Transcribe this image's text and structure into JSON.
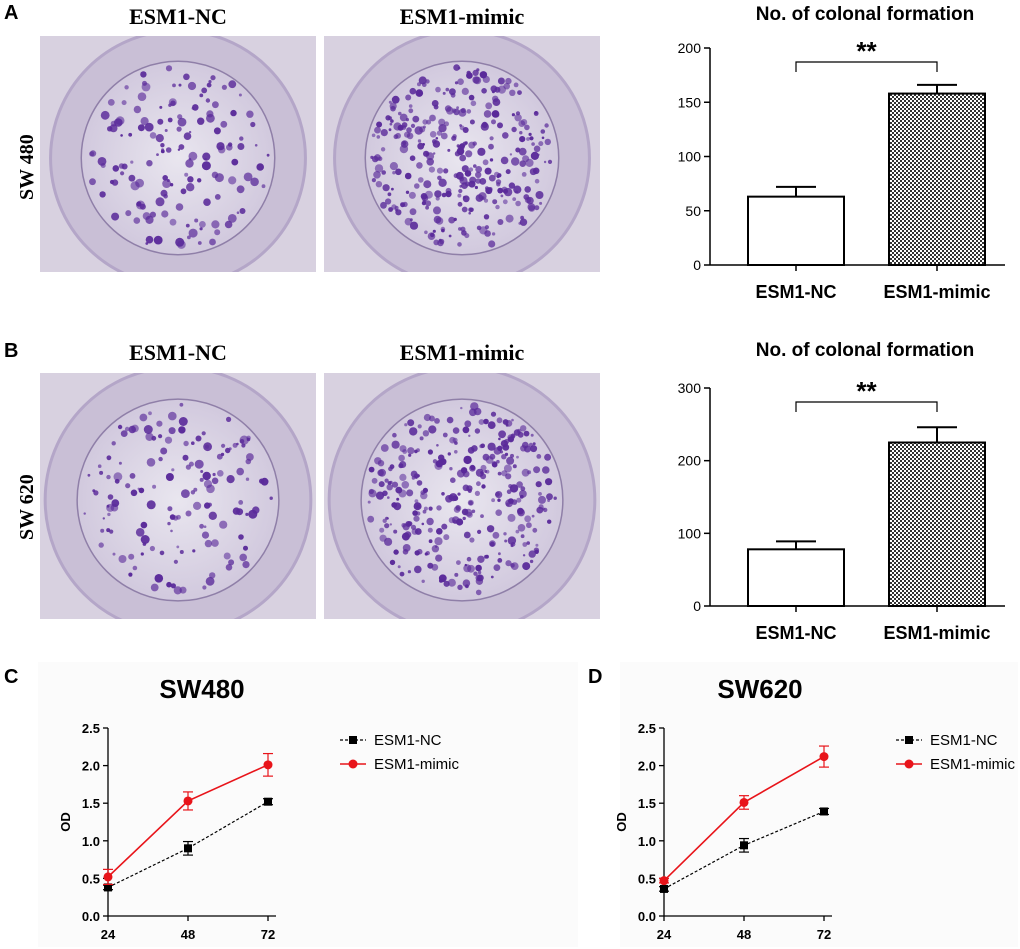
{
  "panels": {
    "A": {
      "letter": "A",
      "row_label": "SW 480",
      "photo_titles": [
        "ESM1-NC",
        "ESM1-mimic"
      ]
    },
    "B": {
      "letter": "B",
      "row_label": "SW 620",
      "photo_titles": [
        "ESM1-NC",
        "ESM1-mimic"
      ]
    },
    "C": {
      "letter": "C"
    },
    "D": {
      "letter": "D"
    }
  },
  "colors": {
    "dish_bg": "#d9d2e2",
    "colony": "#5a2a9a",
    "nc_line": "#000000",
    "mimic_line": "#e8141a"
  },
  "chart_data": [
    {
      "id": "A-bar",
      "type": "bar",
      "title": "No. of colonal formation",
      "categories": [
        "ESM1-NC",
        "ESM1-mimic"
      ],
      "values": [
        63,
        158
      ],
      "errors": [
        9,
        8
      ],
      "fill": [
        "white",
        "checkered"
      ],
      "ylim": [
        0,
        200
      ],
      "yticks": [
        0,
        50,
        100,
        150,
        200
      ],
      "significance": "**",
      "xlabel": "",
      "ylabel": ""
    },
    {
      "id": "B-bar",
      "type": "bar",
      "title": "No. of colonal formation",
      "categories": [
        "ESM1-NC",
        "ESM1-mimic"
      ],
      "values": [
        78,
        225
      ],
      "errors": [
        11,
        21
      ],
      "fill": [
        "white",
        "checkered"
      ],
      "ylim": [
        0,
        300
      ],
      "yticks": [
        0,
        100,
        200,
        300
      ],
      "significance": "**",
      "xlabel": "",
      "ylabel": ""
    },
    {
      "id": "C-line",
      "type": "line",
      "title": "SW480",
      "x": [
        24,
        48,
        72
      ],
      "xticks": [
        "24",
        "48",
        "72"
      ],
      "ylabel": "OD",
      "xlabel": "",
      "ylim": [
        0,
        2.5
      ],
      "yticks": [
        "0.0",
        "0.5",
        "1.0",
        "1.5",
        "2.0",
        "2.5"
      ],
      "legend": "top-right",
      "series": [
        {
          "name": "ESM1-NC",
          "values": [
            0.38,
            0.9,
            1.52
          ],
          "errors": [
            0.03,
            0.09,
            0.04
          ],
          "color": "#000000",
          "marker": "square",
          "dashed": true
        },
        {
          "name": "ESM1-mimic",
          "values": [
            0.52,
            1.53,
            2.01
          ],
          "errors": [
            0.1,
            0.12,
            0.15
          ],
          "color": "#e8141a",
          "marker": "circle",
          "dashed": false
        }
      ]
    },
    {
      "id": "D-line",
      "type": "line",
      "title": "SW620",
      "x": [
        24,
        48,
        72
      ],
      "xticks": [
        "24",
        "48",
        "72"
      ],
      "ylabel": "OD",
      "xlabel": "",
      "ylim": [
        0,
        2.5
      ],
      "yticks": [
        "0.0",
        "0.5",
        "1.0",
        "1.5",
        "2.0",
        "2.5"
      ],
      "legend": "top-right",
      "series": [
        {
          "name": "ESM1-NC",
          "values": [
            0.36,
            0.94,
            1.39
          ],
          "errors": [
            0.03,
            0.09,
            0.04
          ],
          "color": "#000000",
          "marker": "square",
          "dashed": true
        },
        {
          "name": "ESM1-mimic",
          "values": [
            0.47,
            1.51,
            2.12
          ],
          "errors": [
            0.03,
            0.09,
            0.14
          ],
          "color": "#e8141a",
          "marker": "circle",
          "dashed": false
        }
      ]
    }
  ]
}
